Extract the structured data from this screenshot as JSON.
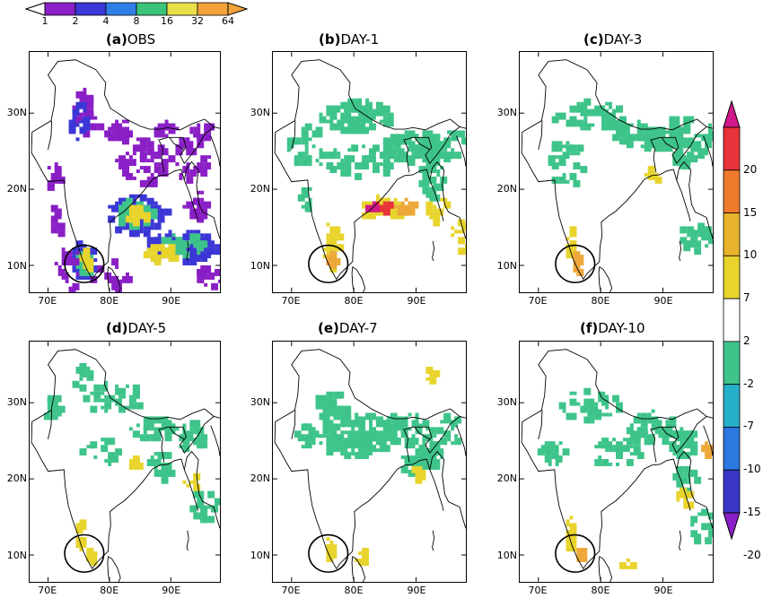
{
  "top_colorbar": {
    "labels": [
      "1",
      "2",
      "4",
      "8",
      "16",
      "32",
      "64"
    ],
    "colors": [
      "#8a1fc6",
      "#3b37d6",
      "#2f7fe6",
      "#3cc37a",
      "#e8e04a",
      "#f3a33a"
    ]
  },
  "side_colorbar": {
    "labels": [
      "20",
      "15",
      "10",
      "7",
      "2",
      "-2",
      "-7",
      "-10",
      "-15",
      "-20"
    ],
    "colors": [
      "#d2198a",
      "#e8333a",
      "#ee7a2c",
      "#e8b32c",
      "#e8d42c",
      "#ffffff",
      "#3ec48a",
      "#26b0c8",
      "#2a78e0",
      "#3a36c8",
      "#8a1fc6"
    ]
  },
  "panels": [
    {
      "tag": "(a)",
      "label": "OBS",
      "kind": "obs"
    },
    {
      "tag": "(b)",
      "label": "DAY-1",
      "kind": "day1"
    },
    {
      "tag": "(c)",
      "label": "DAY-3",
      "kind": "day3"
    },
    {
      "tag": "(d)",
      "label": "DAY-5",
      "kind": "day5"
    },
    {
      "tag": "(e)",
      "label": "DAY-7",
      "kind": "day7"
    },
    {
      "tag": "(f)",
      "label": "DAY-10",
      "kind": "day10"
    }
  ],
  "axes": {
    "lat_labels": [
      "30N",
      "20N",
      "10N"
    ],
    "lon_labels": [
      "70E",
      "80E",
      "90E"
    ]
  },
  "colors": {
    "green": "#3ec48a",
    "yellow": "#e8d42c",
    "orange": "#eea83a",
    "red": "#e8333a",
    "magenta": "#d2198a",
    "purple": "#8a1fc6",
    "blue": "#3b37d6",
    "lightblue": "#2f9ae6"
  }
}
